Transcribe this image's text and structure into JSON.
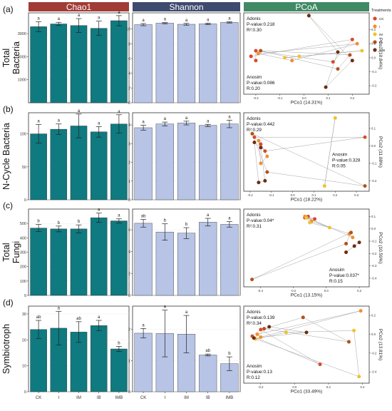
{
  "header_titles": [
    "Chao1",
    "Shannon",
    "PCoA"
  ],
  "header_colors": [
    "#a23a36",
    "#3e4a6e",
    "#3f8a64"
  ],
  "bar_colors": {
    "chao1": "#0f7a80",
    "shannon": "#b8c4e6"
  },
  "legend": {
    "title": "Treatments",
    "items": [
      {
        "label": "CK",
        "color": "#d94a2a"
      },
      {
        "label": "I",
        "color": "#f28e2b"
      },
      {
        "label": "IM",
        "color": "#f2c12e"
      },
      {
        "label": "IB",
        "color": "#b5501c"
      },
      {
        "label": "IMB",
        "color": "#6b2e14"
      }
    ]
  },
  "x_categories": [
    "CK",
    "I",
    "IM",
    "IB",
    "IMB"
  ],
  "rows": [
    {
      "panel_label": "(a)",
      "row_title_lines": [
        "Total",
        "Bacteria"
      ],
      "chao1": {
        "yticks": [
          "1000",
          "2000",
          "3000"
        ],
        "ylim": [
          0,
          3900
        ],
        "values": [
          3300,
          3420,
          3350,
          3230,
          3560
        ],
        "errors": [
          220,
          70,
          300,
          310,
          220
        ],
        "letters": [
          "a",
          "a",
          "a",
          "a",
          "a"
        ]
      },
      "shannon": {
        "yticks": [
          "0",
          "2",
          "4",
          "6",
          "8",
          "10"
        ],
        "ylim": [
          0,
          12.2
        ],
        "values": [
          10.6,
          10.8,
          10.65,
          10.7,
          10.9
        ],
        "errors": [
          0.15,
          0.08,
          0.12,
          0.1,
          0.08
        ],
        "letters": [
          "a",
          "a",
          "a",
          "a",
          "a"
        ]
      },
      "pcoa": {
        "xlabel": "PCo1 (14.31%)",
        "ylabel": "PCo2 (10.84%)",
        "xticks": [
          "-0.2",
          "-0.1",
          "0.0",
          "0.1",
          "0.2"
        ],
        "yticks": [
          "-0.2",
          "-0.1",
          "0.0",
          "0.1",
          "0.2"
        ],
        "xlim": [
          -0.25,
          0.27
        ],
        "ylim": [
          -0.26,
          0.32
        ],
        "annot1": [
          "Adonis",
          "P-value:0.218",
          "R²:0.30"
        ],
        "annot1_pos": "top-left",
        "annot2": [
          "Anosim",
          "P-value:0.086",
          "R:0.20"
        ],
        "annot2_pos": "bottom-left",
        "points": [
          {
            "x": 0.02,
            "y": 0.3,
            "g": 4
          },
          {
            "x": -0.2,
            "y": 0.05,
            "g": 0
          },
          {
            "x": -0.2,
            "y": -0.02,
            "g": 0
          },
          {
            "x": -0.22,
            "y": 0.01,
            "g": 0
          },
          {
            "x": 0.2,
            "y": 0.13,
            "g": 0
          },
          {
            "x": 0.12,
            "y": -0.03,
            "g": 0
          },
          {
            "x": -0.19,
            "y": 0.03,
            "g": 1
          },
          {
            "x": 0.22,
            "y": 0.1,
            "g": 1
          },
          {
            "x": -0.05,
            "y": -0.02,
            "g": 1
          },
          {
            "x": -0.08,
            "y": 0.0,
            "g": 2
          },
          {
            "x": 0.24,
            "y": 0.05,
            "g": 2
          },
          {
            "x": -0.02,
            "y": 0.01,
            "g": 2
          },
          {
            "x": -0.18,
            "y": 0.05,
            "g": 3
          },
          {
            "x": 0.19,
            "y": 0.02,
            "g": 3
          },
          {
            "x": 0.14,
            "y": -0.08,
            "g": 3
          },
          {
            "x": 0.14,
            "y": 0.04,
            "g": 4
          },
          {
            "x": 0.09,
            "y": -0.21,
            "g": 4
          },
          {
            "x": 0.2,
            "y": -0.02,
            "g": 4
          }
        ]
      }
    },
    {
      "panel_label": "(b)",
      "row_title_lines": [
        "N-Cycle Bacteria"
      ],
      "chao1": {
        "yticks": [
          "0",
          "50",
          "100"
        ],
        "ylim": [
          0,
          132
        ],
        "values": [
          100,
          107,
          112,
          103,
          115
        ],
        "errors": [
          14,
          8,
          18,
          8,
          14
        ],
        "letters": [
          "a",
          "a",
          "a",
          "a",
          "a"
        ]
      },
      "shannon": {
        "yticks": [
          "0",
          "1",
          "2",
          "3",
          "4"
        ],
        "ylim": [
          0,
          4.65
        ],
        "values": [
          3.85,
          4.05,
          4.1,
          3.97,
          4.05
        ],
        "errors": [
          0.13,
          0.1,
          0.1,
          0.06,
          0.2
        ],
        "letters": [
          "a",
          "a",
          "a",
          "a",
          "a"
        ]
      },
      "pcoa": {
        "xlabel": "PCo1 (18.22%)",
        "ylabel": "PCo2 (11.08%)",
        "xticks": [
          "-0.2",
          "-0.1",
          "0.0",
          "0.1",
          "0.2",
          "0.3"
        ],
        "yticks": [
          "-0.2",
          "-0.1",
          "0.0",
          "0.1"
        ],
        "xlim": [
          -0.23,
          0.36
        ],
        "ylim": [
          -0.26,
          0.19
        ],
        "annot1": [
          "Adonis",
          "P-value:0.442",
          "R²:0.29"
        ],
        "annot1_pos": "top-left",
        "annot2": [
          "Anosim",
          "P-value:0.328",
          "R:0.05"
        ],
        "annot2_pos": "right-middle",
        "points": [
          {
            "x": -0.18,
            "y": 0.05,
            "g": 0
          },
          {
            "x": -0.15,
            "y": 0.01,
            "g": 0
          },
          {
            "x": -0.13,
            "y": -0.03,
            "g": 0
          },
          {
            "x": 0.34,
            "y": 0.05,
            "g": 0
          },
          {
            "x": -0.16,
            "y": 0.03,
            "g": 1
          },
          {
            "x": -0.12,
            "y": -0.06,
            "g": 1
          },
          {
            "x": -0.15,
            "y": -0.1,
            "g": 1
          },
          {
            "x": 0.2,
            "y": 0.16,
            "g": 2
          },
          {
            "x": 0.15,
            "y": -0.23,
            "g": 2
          },
          {
            "x": -0.19,
            "y": 0.07,
            "g": 3
          },
          {
            "x": -0.12,
            "y": -0.15,
            "g": 3
          },
          {
            "x": 0.34,
            "y": -0.23,
            "g": 3
          },
          {
            "x": -0.18,
            "y": 0.02,
            "g": 4
          },
          {
            "x": -0.15,
            "y": -0.01,
            "g": 4
          },
          {
            "x": -0.13,
            "y": -0.2,
            "g": 4
          },
          {
            "x": -0.16,
            "y": -0.21,
            "g": 4
          }
        ]
      }
    },
    {
      "panel_label": "(c)",
      "row_title_lines": [
        "Total",
        "Fungi"
      ],
      "chao1": {
        "yticks": [
          "0",
          "100",
          "200",
          "300",
          "400",
          "500"
        ],
        "ylim": [
          0,
          600
        ],
        "values": [
          468,
          462,
          462,
          540,
          518
        ],
        "errors": [
          25,
          20,
          28,
          32,
          14
        ],
        "letters": [
          "b",
          "b",
          "b",
          "a",
          "a"
        ]
      },
      "shannon": {
        "yticks": [
          "0",
          "2",
          "4",
          "6"
        ],
        "ylim": [
          0,
          7.9
        ],
        "values": [
          6.6,
          5.8,
          5.7,
          6.7,
          6.5
        ],
        "errors": [
          0.35,
          0.75,
          0.5,
          0.35,
          0.25
        ],
        "letters": [
          "ab",
          "b",
          "b",
          "a",
          "a"
        ]
      },
      "pcoa": {
        "xlabel": "PCo1 (13.15%)",
        "ylabel": "PCo2 (10.59%)",
        "xticks": [
          "-0.4",
          "-0.2",
          "0.0",
          "0.2"
        ],
        "yticks": [
          "-0.4",
          "-0.3",
          "-0.2",
          "-0.1",
          "0.0",
          "0.1"
        ],
        "xlim": [
          -0.5,
          0.26
        ],
        "ylim": [
          -0.47,
          0.16
        ],
        "annot1": [
          "Adonis",
          "P-value:0.04*",
          "R²:0.31"
        ],
        "annot1_pos": "top-left",
        "annot2": [
          "Anosim",
          "P-value:0.037*",
          "R:0.15"
        ],
        "annot2_pos": "bottom-right",
        "points": [
          {
            "x": -0.13,
            "y": 0.09,
            "g": 0
          },
          {
            "x": -0.11,
            "y": 0.1,
            "g": 0
          },
          {
            "x": -0.07,
            "y": 0.08,
            "g": 0
          },
          {
            "x": -0.13,
            "y": 0.1,
            "g": 1
          },
          {
            "x": -0.09,
            "y": 0.06,
            "g": 1
          },
          {
            "x": 0.14,
            "y": -0.04,
            "g": 1
          },
          {
            "x": 0.16,
            "y": -0.07,
            "g": 1
          },
          {
            "x": -0.12,
            "y": 0.09,
            "g": 2
          },
          {
            "x": -0.1,
            "y": 0.05,
            "g": 2
          },
          {
            "x": 0.02,
            "y": 0.01,
            "g": 2
          },
          {
            "x": -0.45,
            "y": -0.41,
            "g": 3
          },
          {
            "x": 0.15,
            "y": -0.03,
            "g": 3
          },
          {
            "x": 0.12,
            "y": -0.12,
            "g": 3
          },
          {
            "x": 0.17,
            "y": -0.14,
            "g": 4
          },
          {
            "x": 0.2,
            "y": -0.11,
            "g": 4
          },
          {
            "x": 0.12,
            "y": -0.19,
            "g": 4
          }
        ]
      }
    },
    {
      "panel_label": "(d)",
      "row_title_lines": [
        "Symbiotroph"
      ],
      "chao1": {
        "yticks": [
          "0",
          "10",
          "20",
          "30"
        ],
        "ylim": [
          0,
          33
        ],
        "values": [
          24,
          24.5,
          23,
          25.5,
          16.5
        ],
        "errors": [
          3.5,
          6.5,
          4,
          2,
          1
        ],
        "letters": [
          "ab",
          "a",
          "ab",
          "a",
          "b"
        ]
      },
      "shannon": {
        "yticks": [
          "0",
          "1",
          "2"
        ],
        "ylim": [
          0,
          2.75
        ],
        "values": [
          1.88,
          1.87,
          1.85,
          1.18,
          0.9
        ],
        "errors": [
          0.15,
          0.75,
          0.6,
          0.03,
          0.22
        ],
        "letters": [
          "a",
          "a",
          "a",
          "ab",
          "b"
        ]
      },
      "pcoa": {
        "xlabel": "PCo1 (33.49%)",
        "ylabel": "PCo2 (13.81%)",
        "xticks": [
          "-0.2",
          "0.0",
          "0.2",
          "0.4"
        ],
        "yticks": [
          "-0.4",
          "-0.2",
          "0.0",
          "0.2"
        ],
        "xlim": [
          -0.3,
          0.44
        ],
        "ylim": [
          -0.52,
          0.3
        ],
        "annot1": [
          "Adonis",
          "P-value:0.139",
          "R²:0.34"
        ],
        "annot1_pos": "top-left",
        "annot2": [
          "Anosim",
          "P-value:0.13",
          "R:0.12"
        ],
        "annot2_pos": "bottom-left",
        "points": [
          {
            "x": -0.25,
            "y": -0.02,
            "g": 0
          },
          {
            "x": -0.2,
            "y": 0.05,
            "g": 0
          },
          {
            "x": 0.15,
            "y": -0.32,
            "g": 0
          },
          {
            "x": -0.22,
            "y": 0.0,
            "g": 1
          },
          {
            "x": -0.2,
            "y": -0.03,
            "g": 1
          },
          {
            "x": 0.39,
            "y": 0.25,
            "g": 1
          },
          {
            "x": -0.23,
            "y": -0.05,
            "g": 2
          },
          {
            "x": -0.05,
            "y": 0.02,
            "g": 2
          },
          {
            "x": 0.35,
            "y": 0.04,
            "g": 2
          },
          {
            "x": 0.38,
            "y": -0.45,
            "g": 2
          },
          {
            "x": -0.18,
            "y": 0.06,
            "g": 3
          },
          {
            "x": 0.05,
            "y": 0.18,
            "g": 3
          },
          {
            "x": 0.32,
            "y": -0.08,
            "g": 3
          },
          {
            "x": -0.24,
            "y": -0.04,
            "g": 4
          },
          {
            "x": -0.15,
            "y": 0.08,
            "g": 4
          },
          {
            "x": 0.07,
            "y": 0.02,
            "g": 4
          }
        ]
      }
    }
  ],
  "chart_data": [
    {
      "type": "bar",
      "title": "Chao1",
      "ylabel": "Total Bacteria",
      "categories": [
        "CK",
        "I",
        "IM",
        "IB",
        "IMB"
      ],
      "values": [
        3300,
        3420,
        3350,
        3230,
        3560
      ],
      "errors": [
        220,
        70,
        300,
        310,
        220
      ],
      "letters": [
        "a",
        "a",
        "a",
        "a",
        "a"
      ],
      "ylim": [
        0,
        3900
      ]
    },
    {
      "type": "bar",
      "title": "Shannon",
      "ylabel": "Total Bacteria",
      "categories": [
        "CK",
        "I",
        "IM",
        "IB",
        "IMB"
      ],
      "values": [
        10.6,
        10.8,
        10.65,
        10.7,
        10.9
      ],
      "errors": [
        0.15,
        0.08,
        0.12,
        0.1,
        0.08
      ],
      "letters": [
        "a",
        "a",
        "a",
        "a",
        "a"
      ],
      "ylim": [
        0,
        12.2
      ]
    },
    {
      "type": "scatter",
      "title": "PCoA",
      "ylabel": "Total Bacteria",
      "xlabel": "PCo1 (14.31%)",
      "y_axis_label": "PCo2 (10.84%)"
    },
    {
      "type": "bar",
      "title": "Chao1",
      "ylabel": "N-Cycle Bacteria",
      "categories": [
        "CK",
        "I",
        "IM",
        "IB",
        "IMB"
      ],
      "values": [
        100,
        107,
        112,
        103,
        115
      ],
      "errors": [
        14,
        8,
        18,
        8,
        14
      ],
      "letters": [
        "a",
        "a",
        "a",
        "a",
        "a"
      ],
      "ylim": [
        0,
        132
      ]
    },
    {
      "type": "bar",
      "title": "Shannon",
      "ylabel": "N-Cycle Bacteria",
      "categories": [
        "CK",
        "I",
        "IM",
        "IB",
        "IMB"
      ],
      "values": [
        3.85,
        4.05,
        4.1,
        3.97,
        4.05
      ],
      "errors": [
        0.13,
        0.1,
        0.1,
        0.06,
        0.2
      ],
      "letters": [
        "a",
        "a",
        "a",
        "a",
        "a"
      ],
      "ylim": [
        0,
        4.65
      ]
    },
    {
      "type": "scatter",
      "title": "PCoA",
      "ylabel": "N-Cycle Bacteria",
      "xlabel": "PCo1 (18.22%)",
      "y_axis_label": "PCo2 (11.08%)"
    },
    {
      "type": "bar",
      "title": "Chao1",
      "ylabel": "Total Fungi",
      "categories": [
        "CK",
        "I",
        "IM",
        "IB",
        "IMB"
      ],
      "values": [
        468,
        462,
        462,
        540,
        518
      ],
      "errors": [
        25,
        20,
        28,
        32,
        14
      ],
      "letters": [
        "b",
        "b",
        "b",
        "a",
        "a"
      ],
      "ylim": [
        0,
        600
      ]
    },
    {
      "type": "bar",
      "title": "Shannon",
      "ylabel": "Total Fungi",
      "categories": [
        "CK",
        "I",
        "IM",
        "IB",
        "IMB"
      ],
      "values": [
        6.6,
        5.8,
        5.7,
        6.7,
        6.5
      ],
      "errors": [
        0.35,
        0.75,
        0.5,
        0.35,
        0.25
      ],
      "letters": [
        "ab",
        "b",
        "b",
        "a",
        "a"
      ],
      "ylim": [
        0,
        7.9
      ]
    },
    {
      "type": "scatter",
      "title": "PCoA",
      "ylabel": "Total Fungi",
      "xlabel": "PCo1 (13.15%)",
      "y_axis_label": "PCo2 (10.59%)"
    },
    {
      "type": "bar",
      "title": "Chao1",
      "ylabel": "Symbiotroph",
      "categories": [
        "CK",
        "I",
        "IM",
        "IB",
        "IMB"
      ],
      "values": [
        24,
        24.5,
        23,
        25.5,
        16.5
      ],
      "errors": [
        3.5,
        6.5,
        4,
        2,
        1
      ],
      "letters": [
        "ab",
        "a",
        "ab",
        "a",
        "b"
      ],
      "ylim": [
        0,
        33
      ]
    },
    {
      "type": "bar",
      "title": "Shannon",
      "ylabel": "Symbiotroph",
      "categories": [
        "CK",
        "I",
        "IM",
        "IB",
        "IMB"
      ],
      "values": [
        1.88,
        1.87,
        1.85,
        1.18,
        0.9
      ],
      "errors": [
        0.15,
        0.75,
        0.6,
        0.03,
        0.22
      ],
      "letters": [
        "a",
        "a",
        "a",
        "ab",
        "b"
      ],
      "ylim": [
        0,
        2.75
      ]
    },
    {
      "type": "scatter",
      "title": "PCoA",
      "ylabel": "Symbiotroph",
      "xlabel": "PCo1 (33.49%)",
      "y_axis_label": "PCo2 (13.81%)"
    }
  ]
}
